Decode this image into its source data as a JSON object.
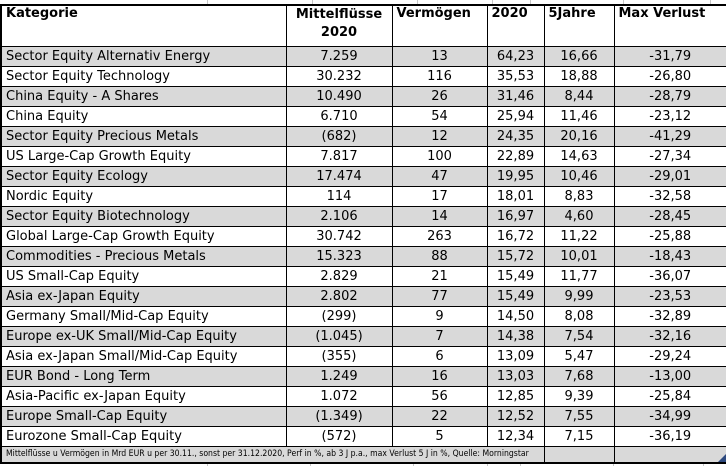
{
  "chart_data": {
    "type": "table",
    "columns": [
      "Kategorie",
      "Mittelflüsse\n2020",
      "Vermögen",
      "2020",
      "5Jahre",
      "Max Verlust"
    ],
    "rows": [
      [
        "Sector Equity Alternativ Energy",
        "7.259",
        "13",
        "64,23",
        "16,66",
        "-31,79"
      ],
      [
        "Sector Equity Technology",
        "30.232",
        "116",
        "35,53",
        "18,88",
        "-26,80"
      ],
      [
        "China Equity - A Shares",
        "10.490",
        "26",
        "31,46",
        "8,44",
        "-28,79"
      ],
      [
        "China Equity",
        "6.710",
        "54",
        "25,94",
        "11,46",
        "-23,12"
      ],
      [
        "Sector Equity Precious Metals",
        "(682)",
        "12",
        "24,35",
        "20,16",
        "-41,29"
      ],
      [
        "US Large-Cap Growth Equity",
        "7.817",
        "100",
        "22,89",
        "14,63",
        "-27,34"
      ],
      [
        "Sector Equity Ecology",
        "17.474",
        "47",
        "19,95",
        "10,46",
        "-29,01"
      ],
      [
        "Nordic Equity",
        "114",
        "17",
        "18,01",
        "8,83",
        "-32,58"
      ],
      [
        "Sector Equity Biotechnology",
        "2.106",
        "14",
        "16,97",
        "4,60",
        "-28,45"
      ],
      [
        "Global Large-Cap Growth Equity",
        "30.742",
        "263",
        "16,72",
        "11,22",
        "-25,88"
      ],
      [
        "Commodities - Precious Metals",
        "15.323",
        "88",
        "15,72",
        "10,01",
        "-18,43"
      ],
      [
        "US Small-Cap Equity",
        "2.829",
        "21",
        "15,49",
        "11,77",
        "-36,07"
      ],
      [
        "Asia ex-Japan Equity",
        "2.802",
        "77",
        "15,49",
        "9,99",
        "-23,53"
      ],
      [
        "Germany Small/Mid-Cap Equity",
        "(299)",
        "9",
        "14,50",
        "8,08",
        "-32,89"
      ],
      [
        "Europe ex-UK Small/Mid-Cap Equity",
        "(1.045)",
        "7",
        "14,38",
        "7,54",
        "-32,16"
      ],
      [
        "Asia ex-Japan Small/Mid-Cap Equity",
        "(355)",
        "6",
        "13,09",
        "5,47",
        "-29,24"
      ],
      [
        "EUR Bond - Long Term",
        "1.249",
        "16",
        "13,03",
        "7,68",
        "-13,00"
      ],
      [
        "Asia-Pacific ex-Japan Equity",
        "1.072",
        "56",
        "12,85",
        "9,39",
        "-25,84"
      ],
      [
        "Europe Small-Cap Equity",
        "(1.349)",
        "22",
        "12,52",
        "7,55",
        "-34,99"
      ],
      [
        "Eurozone Small-Cap Equity",
        "(572)",
        "5",
        "12,34",
        "7,15",
        "-36,19"
      ]
    ],
    "footnote": "Mittelflüsse u Vermögen in Mrd EUR u per 30.11., sonst per 31.12.2020, Perf in %, ab 3 J p.a., max Verlust 5 J in %, Quelle: Morningstar",
    "layout": {
      "shading": "alternating rows, first data row shaded",
      "grid": "all borders black, thick outer border"
    }
  },
  "colors": {
    "shaded_row": "#d9d9d9",
    "plain_row": "#ffffff",
    "border": "#000000",
    "corner_marker_blue": "#2e4a7f"
  }
}
